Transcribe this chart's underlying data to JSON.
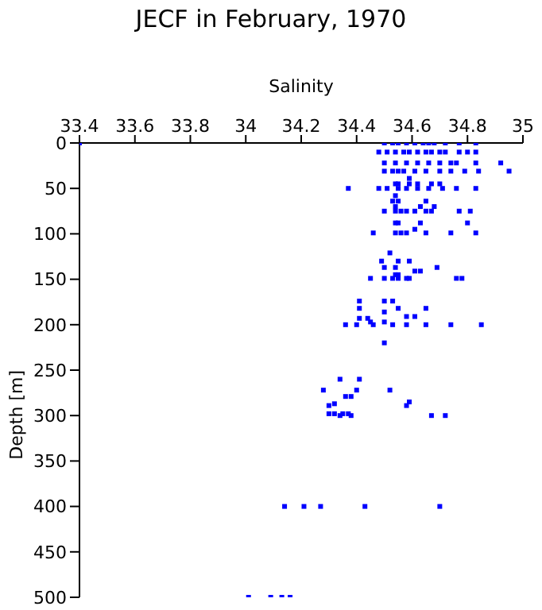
{
  "chart_data": {
    "type": "scatter",
    "title": "JECF in February, 1970",
    "xlabel": "Salinity",
    "ylabel": "Depth [m]",
    "x": [
      33.4,
      34.5,
      34.53,
      34.55,
      34.58,
      34.61,
      34.64,
      34.66,
      34.68,
      34.72,
      34.77,
      34.83,
      34.48,
      34.51,
      34.54,
      34.57,
      34.59,
      34.62,
      34.65,
      34.67,
      34.7,
      34.72,
      34.77,
      34.8,
      34.83,
      34.5,
      34.54,
      34.58,
      34.62,
      34.66,
      34.7,
      34.74,
      34.76,
      34.83,
      34.92,
      34.5,
      34.53,
      34.55,
      34.57,
      34.61,
      34.65,
      34.7,
      34.74,
      34.79,
      34.84,
      34.95,
      34.59,
      34.54,
      34.55,
      34.59,
      34.62,
      34.67,
      34.7,
      34.37,
      34.48,
      34.51,
      34.55,
      34.58,
      34.62,
      34.66,
      34.71,
      34.76,
      34.83,
      34.54,
      34.53,
      34.55,
      34.65,
      34.54,
      34.63,
      34.68,
      34.5,
      34.54,
      34.56,
      34.58,
      34.61,
      34.65,
      34.67,
      34.77,
      34.81,
      34.54,
      34.55,
      34.63,
      34.8,
      34.61,
      34.46,
      34.54,
      34.56,
      34.58,
      34.65,
      34.74,
      34.83,
      34.52,
      34.49,
      34.55,
      34.59,
      34.5,
      34.54,
      34.69,
      34.61,
      34.63,
      34.54,
      34.55,
      34.45,
      34.5,
      34.53,
      34.55,
      34.58,
      34.59,
      34.76,
      34.78,
      34.41,
      34.5,
      34.53,
      34.41,
      34.55,
      34.65,
      34.5,
      34.58,
      34.61,
      34.41,
      34.44,
      34.45,
      34.5,
      34.36,
      34.4,
      34.46,
      34.53,
      34.58,
      34.65,
      34.74,
      34.85,
      34.5,
      34.34,
      34.41,
      34.28,
      34.4,
      34.52,
      34.36,
      34.38,
      34.59,
      34.32,
      34.3,
      34.58,
      34.3,
      34.32,
      34.35,
      34.37,
      34.34,
      34.38,
      34.67,
      34.72,
      34.14,
      34.21,
      34.27,
      34.43,
      34.7,
      34.01,
      34.09,
      34.13,
      34.16
    ],
    "values": [
      0,
      0,
      0,
      0,
      0,
      0,
      0,
      0,
      0,
      0,
      0,
      0,
      10,
      10,
      10,
      10,
      10,
      10,
      10,
      10,
      10,
      10,
      10,
      10,
      10,
      22,
      22,
      22,
      22,
      22,
      22,
      22,
      22,
      22,
      22,
      31,
      31,
      31,
      31,
      31,
      31,
      31,
      31,
      31,
      31,
      31,
      39,
      45,
      45,
      45,
      45,
      45,
      45,
      50,
      50,
      50,
      50,
      50,
      50,
      50,
      50,
      50,
      50,
      58,
      64,
      64,
      64,
      70,
      70,
      70,
      75,
      75,
      75,
      75,
      75,
      75,
      75,
      75,
      75,
      88,
      88,
      88,
      88,
      95,
      99,
      99,
      99,
      99,
      99,
      99,
      99,
      121,
      130,
      130,
      130,
      137,
      137,
      137,
      141,
      141,
      145,
      145,
      149,
      149,
      149,
      149,
      149,
      149,
      149,
      149,
      174,
      174,
      174,
      182,
      182,
      182,
      186,
      191,
      191,
      193,
      193,
      197,
      197,
      200,
      200,
      200,
      200,
      200,
      200,
      200,
      200,
      220,
      260,
      260,
      272,
      272,
      272,
      279,
      279,
      285,
      287,
      289,
      289,
      298,
      298,
      298,
      298,
      300,
      300,
      300,
      300,
      400,
      400,
      400,
      400,
      400,
      500,
      500,
      500,
      500
    ],
    "color": "#0000ff",
    "marker": "square",
    "xlim": [
      33.4,
      35
    ],
    "xticks": [
      33.4,
      33.6,
      33.8,
      34,
      34.2,
      34.4,
      34.6,
      34.8,
      35
    ],
    "ylim": [
      500,
      0
    ],
    "yticks": [
      0,
      50,
      100,
      150,
      200,
      250,
      300,
      350,
      400,
      450,
      500
    ]
  }
}
